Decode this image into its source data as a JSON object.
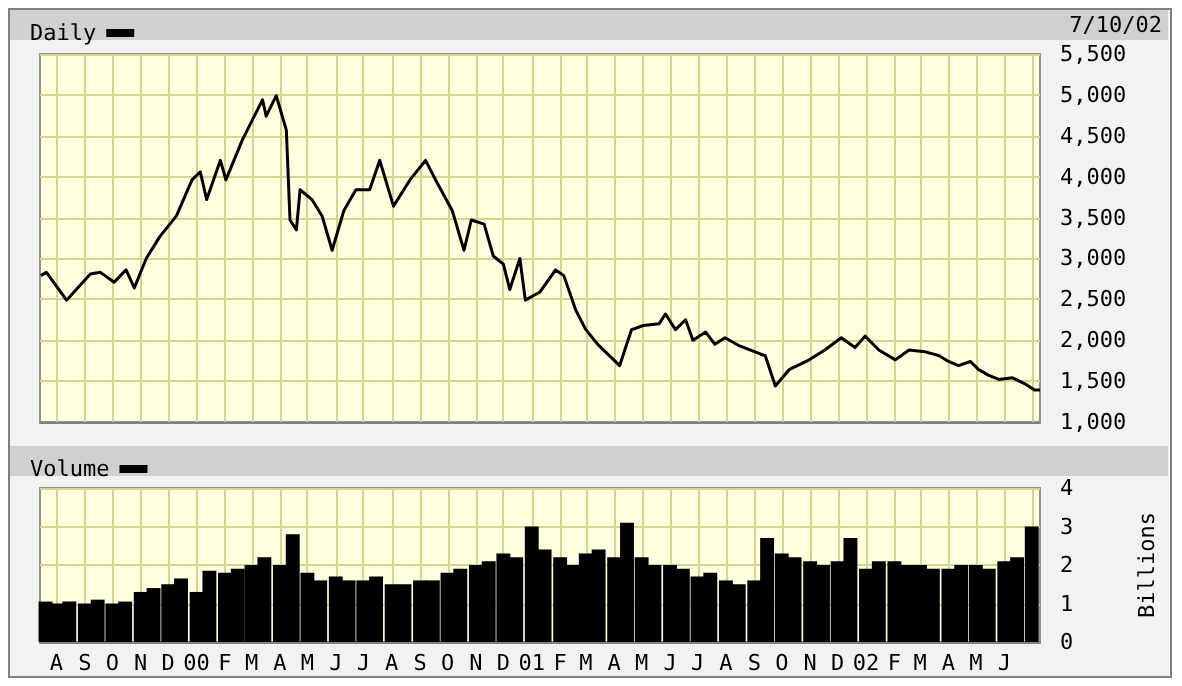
{
  "chart_data": [
    {
      "type": "line",
      "annotations": [
        "7/10/02"
      ],
      "legend": "top left",
      "grid": true,
      "tick_labels": "y",
      "xlim": [
        "1999-07-14",
        "2002-07-10"
      ],
      "ylim": [
        1000,
        5500
      ],
      "yticks": [
        {
          "value": 1000,
          "label": "1,000"
        },
        {
          "value": 1500,
          "label": "1,500"
        },
        {
          "value": 2000,
          "label": "2,000"
        },
        {
          "value": 2500,
          "label": "2,500"
        },
        {
          "value": 3000,
          "label": "3,000"
        },
        {
          "value": 3500,
          "label": "3,500"
        },
        {
          "value": 4000,
          "label": "4,000"
        },
        {
          "value": 4500,
          "label": "4,500"
        },
        {
          "value": 5000,
          "label": "5,000"
        },
        {
          "value": 5500,
          "label": "5,500"
        }
      ],
      "xticks": [
        "1999-08-01",
        "1999-09-01",
        "1999-10-01",
        "1999-11-01",
        "1999-12-01",
        "2000-01-01",
        "2000-02-01",
        "2000-03-01",
        "2000-04-01",
        "2000-05-01",
        "2000-06-01",
        "2000-07-01",
        "2000-08-01",
        "2000-09-01",
        "2000-10-01",
        "2000-11-01",
        "2000-12-01",
        "2001-01-01",
        "2001-02-01",
        "2001-03-01",
        "2001-04-01",
        "2001-05-01",
        "2001-06-01",
        "2001-07-01",
        "2001-08-01",
        "2001-09-01",
        "2001-10-01",
        "2001-11-01",
        "2001-12-01",
        "2002-01-01",
        "2002-02-01",
        "2002-03-01",
        "2002-04-01",
        "2002-05-01",
        "2002-06-01",
        "2002-07-01"
      ],
      "series": [
        {
          "name": "Daily",
          "color": "#000000",
          "x": [
            "1999-07-15",
            "1999-07-21",
            "1999-08-12",
            "1999-09-07",
            "1999-09-18",
            "1999-10-03",
            "1999-10-16",
            "1999-10-25",
            "1999-11-07",
            "1999-11-22",
            "1999-12-10",
            "1999-12-27",
            "2000-01-05",
            "2000-01-12",
            "2000-01-27",
            "2000-02-02",
            "2000-02-20",
            "2000-03-13",
            "2000-03-17",
            "2000-03-28",
            "2000-04-08",
            "2000-04-12",
            "2000-04-19",
            "2000-04-23",
            "2000-05-06",
            "2000-05-17",
            "2000-05-28",
            "2000-06-10",
            "2000-06-23",
            "2000-07-08",
            "2000-07-19",
            "2000-08-03",
            "2000-08-21",
            "2000-09-07",
            "2000-09-18",
            "2000-10-06",
            "2000-10-19",
            "2000-10-27",
            "2000-11-10",
            "2000-11-20",
            "2000-12-01",
            "2000-12-08",
            "2000-12-19",
            "2000-12-25",
            "2001-01-10",
            "2001-01-27",
            "2001-02-05",
            "2001-02-18",
            "2001-03-01",
            "2001-03-14",
            "2001-04-07",
            "2001-04-20",
            "2001-05-03",
            "2001-05-20",
            "2001-05-27",
            "2001-06-07",
            "2001-06-18",
            "2001-06-26",
            "2001-07-10",
            "2001-07-20",
            "2001-07-31",
            "2001-08-16",
            "2001-09-13",
            "2001-09-24",
            "2001-10-09",
            "2001-10-31",
            "2001-11-17",
            "2001-12-05",
            "2001-12-20",
            "2001-12-31",
            "2002-01-15",
            "2002-02-02",
            "2002-02-17",
            "2002-03-06",
            "2002-03-22",
            "2002-04-01",
            "2002-04-12",
            "2002-04-25",
            "2002-05-04",
            "2002-05-15",
            "2002-05-26",
            "2002-06-10",
            "2002-06-23",
            "2002-07-04",
            "2002-07-10"
          ],
          "values": [
            2790,
            2830,
            2490,
            2810,
            2830,
            2710,
            2860,
            2640,
            3000,
            3270,
            3520,
            3960,
            4060,
            3720,
            4200,
            3960,
            4450,
            4940,
            4740,
            4990,
            4570,
            3470,
            3350,
            3840,
            3720,
            3520,
            3100,
            3590,
            3840,
            3840,
            4200,
            3640,
            3960,
            4200,
            3960,
            3590,
            3100,
            3470,
            3420,
            3030,
            2930,
            2620,
            3000,
            2490,
            2590,
            2860,
            2790,
            2370,
            2130,
            1950,
            1690,
            2130,
            2180,
            2200,
            2320,
            2130,
            2250,
            2000,
            2100,
            1950,
            2030,
            1930,
            1810,
            1440,
            1640,
            1760,
            1880,
            2030,
            1910,
            2050,
            1880,
            1760,
            1880,
            1860,
            1810,
            1740,
            1690,
            1740,
            1640,
            1570,
            1520,
            1540,
            1470,
            1390,
            1390
          ]
        }
      ]
    },
    {
      "type": "bar",
      "ylabel": "Billions",
      "legend": "top left",
      "grid": true,
      "xlim": [
        "1999-07-14",
        "2002-07-10"
      ],
      "ylim": [
        0,
        4
      ],
      "yticks": [
        0,
        1,
        2,
        3,
        4
      ],
      "xticks": [
        {
          "value": "1999-08-01",
          "label": "A"
        },
        {
          "value": "1999-09-01",
          "label": "S"
        },
        {
          "value": "1999-10-01",
          "label": "O"
        },
        {
          "value": "1999-11-01",
          "label": "N"
        },
        {
          "value": "1999-12-01",
          "label": "D"
        },
        {
          "value": "2000-01-01",
          "label": "00"
        },
        {
          "value": "2000-02-01",
          "label": "F"
        },
        {
          "value": "2000-03-01",
          "label": "M"
        },
        {
          "value": "2000-04-01",
          "label": "A"
        },
        {
          "value": "2000-05-01",
          "label": "M"
        },
        {
          "value": "2000-06-01",
          "label": "J"
        },
        {
          "value": "2000-07-01",
          "label": "J"
        },
        {
          "value": "2000-08-01",
          "label": "A"
        },
        {
          "value": "2000-09-01",
          "label": "S"
        },
        {
          "value": "2000-10-01",
          "label": "O"
        },
        {
          "value": "2000-11-01",
          "label": "N"
        },
        {
          "value": "2000-12-01",
          "label": "D"
        },
        {
          "value": "2001-01-01",
          "label": "01"
        },
        {
          "value": "2001-02-01",
          "label": "F"
        },
        {
          "value": "2001-03-01",
          "label": "M"
        },
        {
          "value": "2001-04-01",
          "label": "A"
        },
        {
          "value": "2001-05-01",
          "label": "M"
        },
        {
          "value": "2001-06-01",
          "label": "J"
        },
        {
          "value": "2001-07-01",
          "label": "J"
        },
        {
          "value": "2001-08-01",
          "label": "A"
        },
        {
          "value": "2001-09-01",
          "label": "S"
        },
        {
          "value": "2001-10-01",
          "label": "O"
        },
        {
          "value": "2001-11-01",
          "label": "N"
        },
        {
          "value": "2001-12-01",
          "label": "D"
        },
        {
          "value": "2002-01-01",
          "label": "02"
        },
        {
          "value": "2002-02-01",
          "label": "F"
        },
        {
          "value": "2002-03-01",
          "label": "M"
        },
        {
          "value": "2002-04-01",
          "label": "A"
        },
        {
          "value": "2002-05-01",
          "label": "M"
        },
        {
          "value": "2002-06-01",
          "label": "J"
        },
        {
          "value": "2002-07-01",
          "label": null
        }
      ],
      "series": [
        {
          "name": "Volume",
          "color": "#000000",
          "x": [
            "1999-07-20",
            "1999-08-01",
            "1999-08-15",
            "1999-09-01",
            "1999-09-15",
            "1999-10-01",
            "1999-10-15",
            "1999-11-01",
            "1999-11-15",
            "1999-12-01",
            "1999-12-15",
            "2000-01-01",
            "2000-01-15",
            "2000-02-01",
            "2000-02-15",
            "2000-03-01",
            "2000-03-15",
            "2000-04-01",
            "2000-04-15",
            "2000-05-01",
            "2000-05-15",
            "2000-06-01",
            "2000-06-15",
            "2000-07-01",
            "2000-07-15",
            "2000-08-01",
            "2000-08-15",
            "2000-09-01",
            "2000-09-15",
            "2000-10-01",
            "2000-10-15",
            "2000-11-01",
            "2000-11-15",
            "2000-12-01",
            "2000-12-15",
            "2001-01-01",
            "2001-01-15",
            "2001-02-01",
            "2001-02-15",
            "2001-03-01",
            "2001-03-15",
            "2001-04-01",
            "2001-04-15",
            "2001-05-01",
            "2001-05-15",
            "2001-06-01",
            "2001-06-15",
            "2001-07-01",
            "2001-07-15",
            "2001-08-01",
            "2001-08-15",
            "2001-09-01",
            "2001-09-15",
            "2001-10-01",
            "2001-10-15",
            "2001-11-01",
            "2001-11-15",
            "2001-12-01",
            "2001-12-15",
            "2002-01-01",
            "2002-01-15",
            "2002-02-01",
            "2002-02-15",
            "2002-03-01",
            "2002-03-15",
            "2002-04-01",
            "2002-04-15",
            "2002-05-01",
            "2002-05-15",
            "2002-06-01",
            "2002-06-15",
            "2002-07-01"
          ],
          "values": [
            1.05,
            1.0,
            1.05,
            1.0,
            1.1,
            1.0,
            1.05,
            1.3,
            1.4,
            1.5,
            1.65,
            1.3,
            1.85,
            1.8,
            1.9,
            2.0,
            2.2,
            2.0,
            2.8,
            1.8,
            1.6,
            1.7,
            1.6,
            1.6,
            1.7,
            1.5,
            1.5,
            1.6,
            1.6,
            1.8,
            1.9,
            2.0,
            2.1,
            2.3,
            2.2,
            3.0,
            2.4,
            2.2,
            2.0,
            2.3,
            2.4,
            2.2,
            3.1,
            2.2,
            2.0,
            2.0,
            1.9,
            1.7,
            1.8,
            1.6,
            1.5,
            1.6,
            2.7,
            2.3,
            2.2,
            2.1,
            2.0,
            2.1,
            2.7,
            1.9,
            2.1,
            2.1,
            2.0,
            2.0,
            1.9,
            1.9,
            2.0,
            2.0,
            1.9,
            2.1,
            2.2,
            3.0
          ]
        }
      ]
    }
  ]
}
